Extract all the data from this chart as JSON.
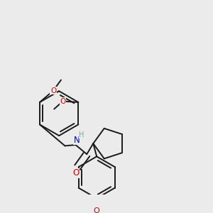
{
  "background_color": "#ebebeb",
  "bond_color": "#1a1a1a",
  "bond_lw": 1.4,
  "atom_colors": {
    "O": "#cc0000",
    "N": "#0000cc",
    "H": "#7a9f9f",
    "C": "#1a1a1a"
  },
  "figsize": [
    3.0,
    3.0
  ],
  "dpi": 100,
  "scale": 1.0
}
